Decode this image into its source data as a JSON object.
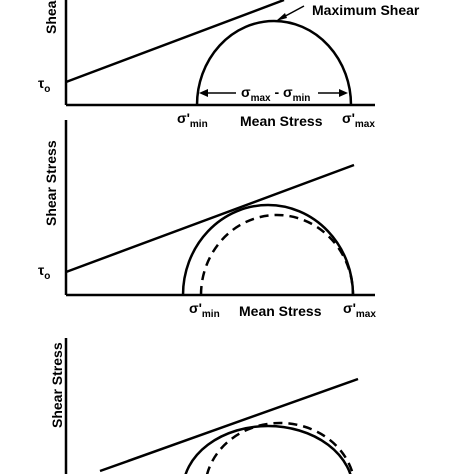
{
  "panels": [
    {
      "y_axis_label": "Shear",
      "x_axis_label": "Mean Stress",
      "intercept_label": "τ",
      "intercept_sub": "o",
      "min_label": "σ'",
      "min_sub": "min",
      "max_label": "σ'",
      "max_sub": "max",
      "annotation": "Maximum Shear",
      "range_label": {
        "sym1": "σ",
        "sub1": "max",
        "dash": " - ",
        "sym2": "σ",
        "sub2": "min"
      }
    },
    {
      "y_axis_label": "Shear Stress",
      "x_axis_label": "Mean Stress",
      "intercept_label": "τ",
      "intercept_sub": "o",
      "min_label": "σ'",
      "min_sub": "min",
      "max_label": "σ'",
      "max_sub": "max"
    },
    {
      "y_axis_label": "Shear Stress"
    }
  ]
}
